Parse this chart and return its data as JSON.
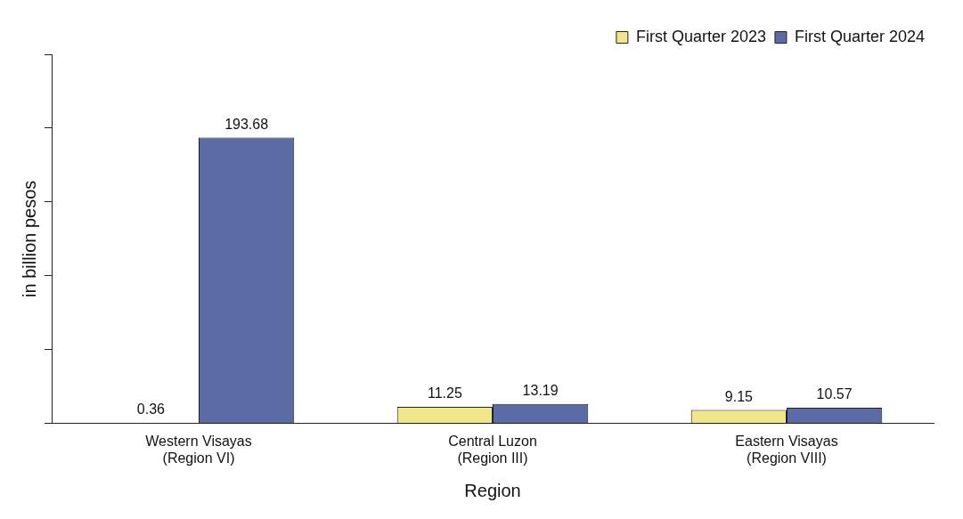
{
  "chart_data": {
    "type": "bar",
    "xlabel": "Region",
    "ylabel": "in billion pesos",
    "categories": [
      "Western Visayas\n(Region VI)",
      "Central Luzon\n(Region III)",
      "Eastern Visayas\n(Region VIII)"
    ],
    "series": [
      {
        "name": "First Quarter 2023",
        "color": "#f0e68a",
        "values": [
          0.36,
          11.25,
          9.15
        ]
      },
      {
        "name": "First Quarter 2024",
        "color": "#5b6ba6",
        "values": [
          193.68,
          13.19,
          10.57
        ]
      }
    ],
    "ylim": [
      0,
      250
    ],
    "yticks": [
      {
        "value": 0,
        "label": null
      },
      {
        "value": 50,
        "label": null
      },
      {
        "value": 100,
        "label": null
      },
      {
        "value": 150,
        "label": null
      },
      {
        "value": 200,
        "label": null
      },
      {
        "value": 250,
        "label": null
      }
    ],
    "tick_labels": "x",
    "grid": false,
    "legend": "top right",
    "data_labels": true
  }
}
